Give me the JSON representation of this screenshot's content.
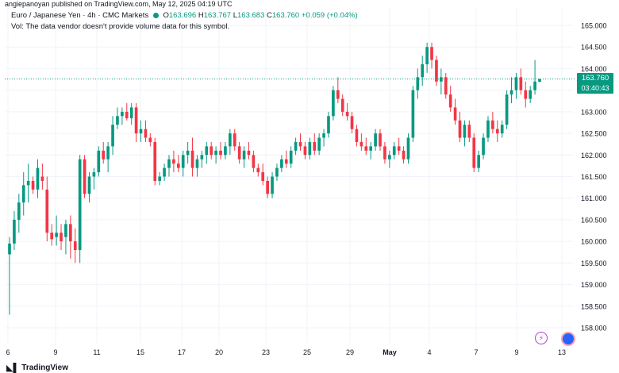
{
  "header": {
    "published_by": "angiepanoyan published on TradingView.com, May 12, 2025 04:19 UTC",
    "symbol": "Euro / Japanese Yen · 4h · CMC Markets",
    "o_label": "O",
    "o_value": "163.696",
    "h_label": "H",
    "h_value": "163.767",
    "l_label": "L",
    "l_value": "163.683",
    "c_label": "C",
    "c_value": "163.760",
    "change": "+0.059 (+0.04%)",
    "vol_note": "Vol: The data vendor doesn't provide volume data for this symbol."
  },
  "price_badge": {
    "price": "163.760",
    "countdown": "03:40:43"
  },
  "footer": {
    "logo_text": "TradingView"
  },
  "icons": {
    "lightning": "lightning-icon",
    "avatar": "avatar-icon"
  },
  "colors": {
    "up": "#089981",
    "down": "#f23645",
    "grid": "#f0f3fa",
    "last_price_line": "#089981"
  },
  "chart_data": {
    "type": "candlestick",
    "title": "Euro / Japanese Yen · 4h · CMC Markets",
    "ylim": [
      157.75,
      165.3
    ],
    "y_ticks": [
      "165.000",
      "164.500",
      "164.000",
      "163.500",
      "163.000",
      "162.500",
      "162.000",
      "161.500",
      "161.000",
      "160.500",
      "160.000",
      "159.500",
      "159.000",
      "158.500",
      "158.000"
    ],
    "x_ticks": [
      "6",
      "9",
      "11",
      "15",
      "17",
      "20",
      "23",
      "25",
      "29",
      "May",
      "4",
      "7",
      "9",
      "13"
    ],
    "last_price": 163.76,
    "grid": true,
    "candles": [
      [
        159.7,
        160.1,
        158.3,
        159.95
      ],
      [
        159.95,
        160.7,
        159.8,
        160.5
      ],
      [
        160.5,
        161.1,
        160.2,
        160.9
      ],
      [
        160.9,
        161.6,
        160.6,
        161.3
      ],
      [
        161.3,
        161.8,
        160.9,
        161.4
      ],
      [
        161.4,
        161.5,
        161.1,
        161.2
      ],
      [
        161.2,
        161.9,
        161.0,
        161.7
      ],
      [
        161.5,
        161.8,
        161.2,
        161.4
      ],
      [
        161.2,
        161.5,
        160.0,
        160.2
      ],
      [
        160.2,
        160.4,
        159.9,
        160.05
      ],
      [
        160.1,
        160.6,
        159.9,
        160.2
      ],
      [
        160.2,
        160.4,
        159.8,
        160.0
      ],
      [
        160.1,
        160.5,
        159.7,
        160.4
      ],
      [
        160.4,
        160.6,
        159.6,
        160.0
      ],
      [
        160.0,
        160.3,
        159.5,
        159.8
      ],
      [
        159.8,
        162.0,
        159.5,
        161.9
      ],
      [
        161.9,
        162.0,
        161.0,
        161.1
      ],
      [
        161.1,
        161.6,
        160.9,
        161.5
      ],
      [
        161.5,
        161.7,
        161.2,
        161.6
      ],
      [
        161.6,
        162.2,
        161.5,
        162.1
      ],
      [
        162.1,
        162.3,
        161.8,
        161.9
      ],
      [
        161.9,
        162.3,
        161.6,
        162.2
      ],
      [
        162.2,
        162.9,
        162.0,
        162.7
      ],
      [
        162.7,
        163.1,
        162.6,
        162.9
      ],
      [
        162.9,
        163.1,
        162.7,
        163.0
      ],
      [
        163.0,
        163.2,
        162.8,
        162.85
      ],
      [
        162.85,
        163.2,
        162.7,
        163.1
      ],
      [
        163.1,
        163.2,
        162.3,
        162.5
      ],
      [
        162.5,
        162.8,
        162.3,
        162.6
      ],
      [
        162.6,
        162.8,
        162.3,
        162.4
      ],
      [
        162.4,
        162.5,
        162.2,
        162.3
      ],
      [
        162.3,
        162.4,
        161.3,
        161.4
      ],
      [
        161.4,
        161.6,
        161.3,
        161.5
      ],
      [
        161.5,
        161.8,
        161.4,
        161.7
      ],
      [
        161.7,
        162.0,
        161.5,
        161.9
      ],
      [
        161.9,
        162.1,
        161.6,
        161.8
      ],
      [
        161.8,
        162.0,
        161.6,
        161.7
      ],
      [
        161.7,
        162.1,
        161.5,
        162.0
      ],
      [
        162.0,
        162.3,
        161.8,
        162.1
      ],
      [
        162.1,
        162.4,
        161.5,
        161.7
      ],
      [
        161.7,
        162.0,
        161.5,
        161.9
      ],
      [
        161.9,
        162.1,
        161.7,
        162.0
      ],
      [
        162.0,
        162.3,
        161.8,
        162.2
      ],
      [
        162.2,
        162.3,
        161.9,
        162.0
      ],
      [
        162.0,
        162.2,
        161.8,
        162.1
      ],
      [
        162.1,
        162.3,
        161.9,
        162.0
      ],
      [
        162.0,
        162.3,
        161.9,
        162.2
      ],
      [
        162.2,
        162.6,
        162.0,
        162.5
      ],
      [
        162.5,
        162.6,
        162.1,
        162.2
      ],
      [
        162.2,
        162.3,
        161.8,
        161.9
      ],
      [
        161.9,
        162.2,
        161.7,
        162.1
      ],
      [
        162.1,
        162.3,
        161.9,
        162.0
      ],
      [
        162.0,
        162.1,
        161.6,
        161.7
      ],
      [
        161.7,
        161.8,
        161.5,
        161.6
      ],
      [
        161.6,
        161.8,
        161.3,
        161.4
      ],
      [
        161.4,
        161.5,
        161.0,
        161.1
      ],
      [
        161.1,
        161.6,
        161.0,
        161.5
      ],
      [
        161.5,
        161.8,
        161.4,
        161.7
      ],
      [
        161.7,
        162.0,
        161.6,
        161.9
      ],
      [
        161.9,
        162.1,
        161.7,
        161.8
      ],
      [
        161.8,
        162.2,
        161.7,
        162.1
      ],
      [
        162.1,
        162.4,
        162.0,
        162.3
      ],
      [
        162.3,
        162.5,
        162.1,
        162.2
      ],
      [
        162.2,
        162.3,
        161.9,
        162.0
      ],
      [
        162.0,
        162.4,
        161.9,
        162.3
      ],
      [
        162.3,
        162.5,
        162.0,
        162.1
      ],
      [
        162.1,
        162.5,
        162.0,
        162.4
      ],
      [
        162.4,
        162.6,
        162.2,
        162.5
      ],
      [
        162.5,
        163.0,
        162.4,
        162.9
      ],
      [
        162.9,
        163.6,
        162.8,
        163.5
      ],
      [
        163.5,
        163.8,
        163.2,
        163.3
      ],
      [
        163.3,
        163.4,
        162.9,
        163.0
      ],
      [
        163.0,
        163.2,
        162.8,
        162.9
      ],
      [
        162.9,
        163.0,
        162.5,
        162.6
      ],
      [
        162.6,
        162.7,
        162.2,
        162.3
      ],
      [
        162.3,
        162.5,
        162.1,
        162.2
      ],
      [
        162.2,
        162.4,
        162.0,
        162.1
      ],
      [
        162.1,
        162.3,
        161.9,
        162.2
      ],
      [
        162.2,
        162.6,
        162.1,
        162.5
      ],
      [
        162.5,
        162.6,
        162.1,
        162.2
      ],
      [
        162.2,
        162.3,
        161.8,
        161.9
      ],
      [
        161.9,
        162.1,
        161.7,
        162.0
      ],
      [
        162.0,
        162.3,
        161.9,
        162.2
      ],
      [
        162.2,
        162.4,
        162.0,
        162.1
      ],
      [
        162.1,
        162.2,
        161.8,
        161.9
      ],
      [
        161.9,
        162.5,
        161.8,
        162.4
      ],
      [
        162.4,
        163.6,
        162.3,
        163.5
      ],
      [
        163.5,
        164.0,
        163.3,
        163.8
      ],
      [
        163.8,
        164.3,
        163.6,
        164.1
      ],
      [
        164.1,
        164.6,
        163.9,
        164.5
      ],
      [
        164.5,
        164.6,
        164.0,
        164.2
      ],
      [
        164.2,
        164.3,
        163.6,
        163.7
      ],
      [
        163.7,
        164.0,
        163.4,
        163.8
      ],
      [
        163.8,
        163.9,
        163.3,
        163.4
      ],
      [
        163.4,
        163.6,
        163.0,
        163.1
      ],
      [
        163.1,
        163.3,
        162.7,
        162.8
      ],
      [
        162.8,
        163.0,
        162.3,
        162.4
      ],
      [
        162.4,
        162.8,
        162.2,
        162.7
      ],
      [
        162.7,
        162.8,
        162.3,
        162.4
      ],
      [
        162.4,
        162.5,
        161.6,
        161.7
      ],
      [
        161.7,
        162.1,
        161.6,
        162.0
      ],
      [
        162.0,
        162.5,
        161.9,
        162.4
      ],
      [
        162.4,
        162.9,
        162.3,
        162.8
      ],
      [
        162.8,
        163.0,
        162.5,
        162.6
      ],
      [
        162.6,
        162.8,
        162.3,
        162.5
      ],
      [
        162.5,
        162.8,
        162.4,
        162.7
      ],
      [
        162.7,
        163.5,
        162.6,
        163.4
      ],
      [
        163.4,
        163.8,
        163.2,
        163.5
      ],
      [
        163.5,
        163.9,
        163.3,
        163.8
      ],
      [
        163.8,
        164.0,
        163.4,
        163.5
      ],
      [
        163.5,
        163.7,
        163.1,
        163.3
      ],
      [
        163.3,
        163.6,
        163.2,
        163.5
      ],
      [
        163.5,
        164.2,
        163.4,
        163.7
      ],
      [
        163.696,
        163.767,
        163.683,
        163.76
      ]
    ]
  }
}
